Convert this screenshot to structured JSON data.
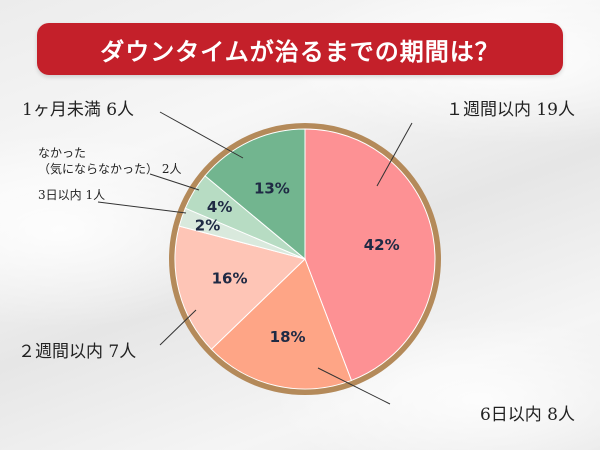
{
  "title": "ダウンタイムが治るまでの期間は？",
  "chart_data": {
    "type": "pie",
    "title": "ダウンタイムが治るまでの期間は？",
    "start_angle_deg": 0,
    "direction": "clockwise",
    "slices": [
      {
        "label": "１週間以内 19人",
        "percent_label": "42%",
        "value": 19,
        "color": "#fd9194"
      },
      {
        "label": "6日以内 8人",
        "percent_label": "18%",
        "value": 8,
        "color": "#fea586"
      },
      {
        "label": "２週間以内 7人",
        "percent_label": "16%",
        "value": 7,
        "color": "#fec5b6"
      },
      {
        "label": "3日以内 1人",
        "percent_label": "2%",
        "value": 1,
        "color": "#d9e9dd"
      },
      {
        "label_lines": [
          "なかった",
          "（気にならなかった） 2人"
        ],
        "percent_label": "4%",
        "value": 2,
        "color": "#b7dcc3"
      },
      {
        "label": "1ヶ月未満 6人",
        "percent_label": "13%",
        "value": 6,
        "color": "#72b58f"
      }
    ],
    "border_color": "#b48a5a"
  }
}
